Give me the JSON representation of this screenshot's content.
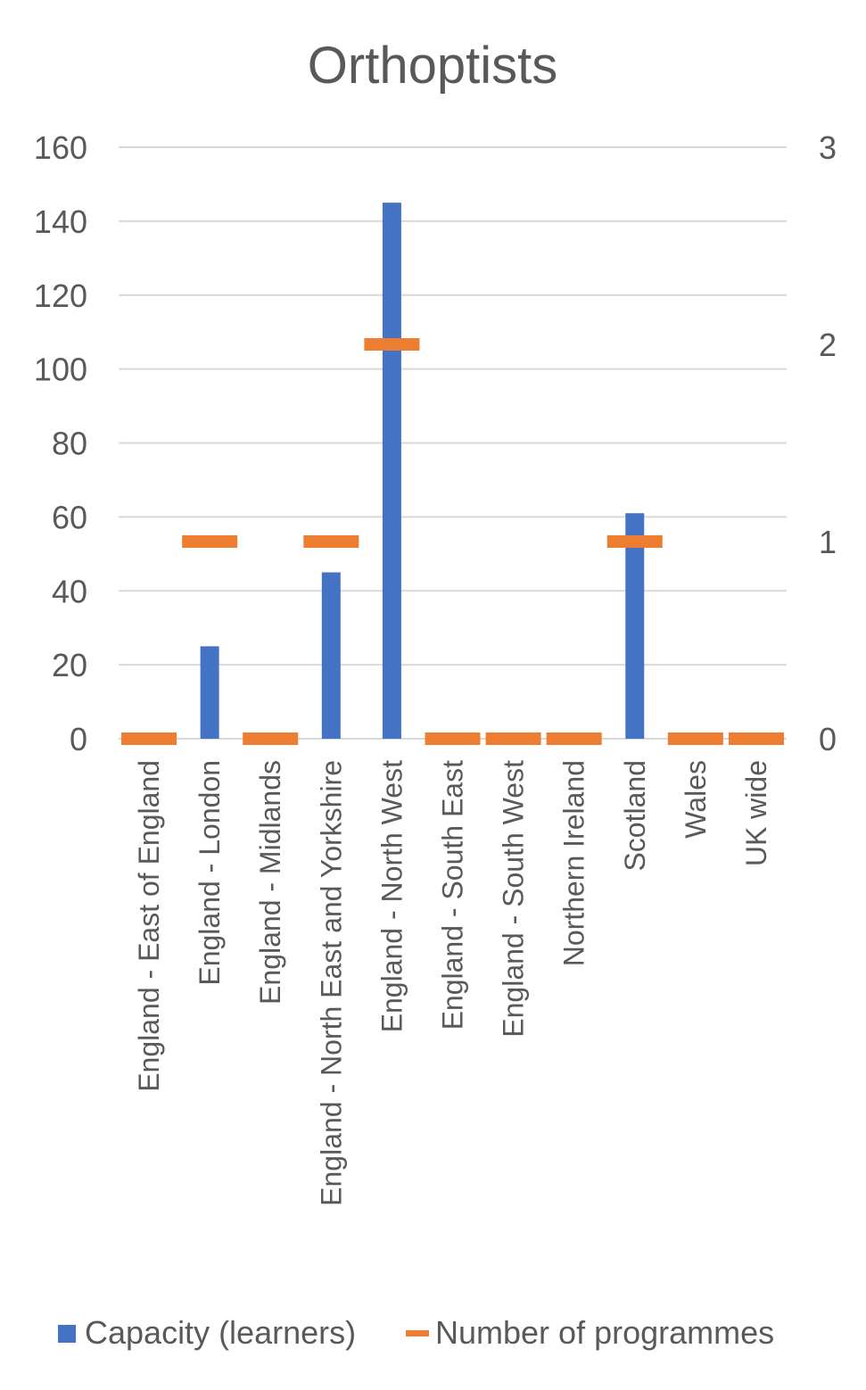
{
  "chart_data": {
    "type": "bar",
    "title": "Orthoptists",
    "categories": [
      "England - East of England",
      "England - London",
      "England - Midlands",
      "England - North East and Yorkshire",
      "England - North West",
      "England - South East",
      "England - South West",
      "Northern Ireland",
      "Scotland",
      "Wales",
      "UK wide"
    ],
    "series": [
      {
        "name": "Capacity (learners)",
        "type": "bar",
        "axis": "primary",
        "color": "#4472c4",
        "values": [
          0,
          25,
          0,
          45,
          145,
          0,
          0,
          0,
          61,
          0,
          0
        ]
      },
      {
        "name": "Number of programmes",
        "type": "marker-dash",
        "axis": "secondary",
        "color": "#ed7d31",
        "values": [
          0,
          1,
          0,
          1,
          2,
          0,
          0,
          0,
          1,
          0,
          0
        ]
      }
    ],
    "y_left": {
      "min": 0,
      "max": 160,
      "ticks": [
        "0",
        "20",
        "40",
        "60",
        "80",
        "100",
        "120",
        "140",
        "160"
      ]
    },
    "y_right": {
      "min": 0,
      "max": 3,
      "ticks": [
        "0",
        "1",
        "2",
        "3"
      ]
    },
    "grid": true,
    "legend_position": "bottom"
  }
}
